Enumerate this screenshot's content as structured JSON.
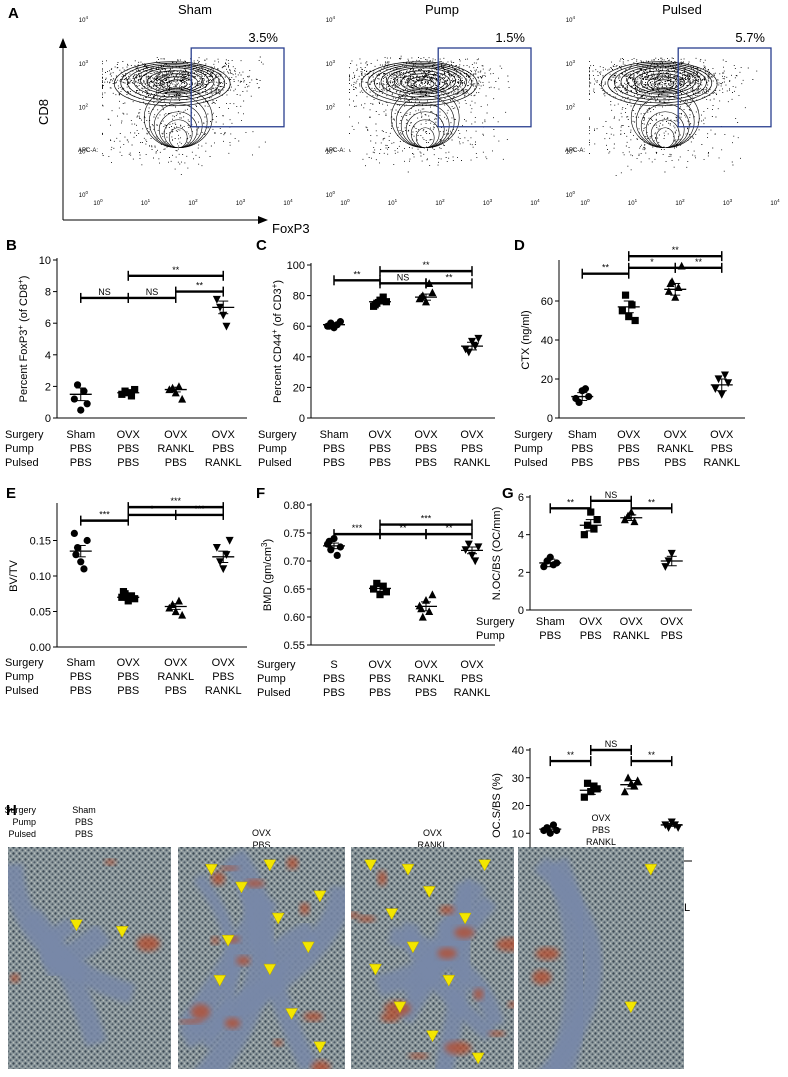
{
  "panel_letters": [
    "A",
    "B",
    "C",
    "D",
    "E",
    "F",
    "G",
    "H"
  ],
  "flow": {
    "y_label": "CD8",
    "x_label": "FoxP3",
    "apc_label": "APC-A:",
    "ticks": [
      "10 0",
      "10 1",
      "10 2",
      "10 3",
      "10 4"
    ],
    "plots": [
      {
        "title": "Sham",
        "percent": "3.5%",
        "gate_value": "3.45"
      },
      {
        "title": "Pump",
        "percent": "1.5%",
        "gate_value": "1.53"
      },
      {
        "title": "Pulsed",
        "percent": "5.7%",
        "gate_value": "5.71"
      }
    ]
  },
  "group_rows": {
    "labels3": [
      "Surgery",
      "Pump",
      "Pulsed"
    ],
    "labels2": [
      "Surgery",
      "Pump"
    ]
  },
  "chart_data": [
    {
      "id": "B",
      "type": "scatter",
      "ylabel": "Percent FoxP3+ (of CD8+)",
      "ylim": [
        0,
        10
      ],
      "yticks": [
        0,
        2,
        4,
        6,
        8,
        10
      ],
      "groups": [
        [
          "Sham",
          "PBS",
          "PBS"
        ],
        [
          "OVX",
          "PBS",
          "PBS"
        ],
        [
          "OVX",
          "RANKL",
          "PBS"
        ],
        [
          "OVX",
          "PBS",
          "RANKL"
        ]
      ],
      "markers": [
        "circle",
        "square",
        "triangle",
        "triangle-down"
      ],
      "points": [
        [
          1.2,
          2.1,
          0.5,
          1.7,
          0.9
        ],
        [
          1.5,
          1.7,
          1.6,
          1.4,
          1.8
        ],
        [
          1.8,
          1.9,
          1.6,
          2.0,
          1.2
        ],
        [
          7.5,
          7.0,
          6.5,
          5.8
        ]
      ],
      "means": [
        1.5,
        1.6,
        1.8,
        7.0
      ],
      "sems": [
        0.4,
        0.1,
        0.15,
        0.4
      ],
      "sig": [
        {
          "from": 0,
          "to": 1,
          "level": 7.6,
          "label": "NS"
        },
        {
          "from": 1,
          "to": 2,
          "level": 7.6,
          "label": "NS"
        },
        {
          "from": 1,
          "to": 3,
          "level": 9.0,
          "label": "**"
        },
        {
          "from": 2,
          "to": 3,
          "level": 8.0,
          "label": "**"
        }
      ]
    },
    {
      "id": "C",
      "type": "scatter",
      "ylabel": "Percent CD44+ (of CD3+)",
      "ylim": [
        0,
        100
      ],
      "yticks": [
        0,
        20,
        40,
        60,
        80,
        100
      ],
      "groups": [
        [
          "Sham",
          "PBS",
          "PBS"
        ],
        [
          "OVX",
          "PBS",
          "PBS"
        ],
        [
          "OVX",
          "PBS",
          "PBS"
        ],
        [
          "OVX",
          "PBS",
          "RANKL"
        ]
      ],
      "markers": [
        "circle",
        "square",
        "triangle",
        "triangle-down"
      ],
      "points": [
        [
          60,
          62,
          59,
          61,
          63,
          60
        ],
        [
          73,
          75,
          77,
          79,
          76,
          74
        ],
        [
          78,
          80,
          76,
          88,
          82,
          79
        ],
        [
          45,
          43,
          50,
          47,
          52
        ]
      ],
      "means": [
        61,
        76,
        79,
        47
      ],
      "sems": [
        1,
        1.5,
        2,
        2.5
      ],
      "sig": [
        {
          "from": 0,
          "to": 1,
          "level": 90,
          "label": "**"
        },
        {
          "from": 1,
          "to": 2,
          "level": 88,
          "label": "NS"
        },
        {
          "from": 1,
          "to": 3,
          "level": 96,
          "label": "**"
        },
        {
          "from": 2,
          "to": 3,
          "level": 88,
          "label": "**"
        }
      ]
    },
    {
      "id": "D",
      "type": "scatter",
      "ylabel": "CTX (ng/ml)",
      "ylim": [
        0,
        80
      ],
      "yticks": [
        0,
        20,
        40,
        60
      ],
      "groups": [
        [
          "Sham",
          "PBS",
          "PBS"
        ],
        [
          "OVX",
          "PBS",
          "PBS"
        ],
        [
          "OVX",
          "RANKL",
          "PBS"
        ],
        [
          "OVX",
          "PBS",
          "RANKL"
        ]
      ],
      "markers": [
        "circle",
        "square",
        "triangle",
        "triangle-down"
      ],
      "points": [
        [
          10,
          8,
          14,
          15,
          11
        ],
        [
          55,
          63,
          52,
          58,
          50
        ],
        [
          65,
          70,
          62,
          67,
          78,
          69
        ],
        [
          15,
          20,
          12,
          22,
          18
        ]
      ],
      "means": [
        11,
        57,
        66,
        17
      ],
      "sems": [
        2,
        3,
        3,
        3
      ],
      "sig": [
        {
          "from": 0,
          "to": 1,
          "level": 74,
          "label": "**"
        },
        {
          "from": 1,
          "to": 2,
          "level": 77,
          "label": "*"
        },
        {
          "from": 1,
          "to": 3,
          "level": 83,
          "label": "**"
        },
        {
          "from": 2,
          "to": 3,
          "level": 77,
          "label": "**"
        }
      ]
    },
    {
      "id": "E",
      "type": "scatter",
      "ylabel": "BV/TV",
      "ylim": [
        0.0,
        0.2
      ],
      "yticks": [
        0.0,
        0.05,
        0.1,
        0.15
      ],
      "ytick_labels": [
        "0.00",
        "0.05",
        "0.10",
        "0.15"
      ],
      "groups": [
        [
          "Sham",
          "PBS",
          "PBS"
        ],
        [
          "OVX",
          "PBS",
          "PBS"
        ],
        [
          "OVX",
          "RANKL",
          "PBS"
        ],
        [
          "OVX",
          "PBS",
          "RANKL"
        ]
      ],
      "markers": [
        "circle",
        "square",
        "triangle",
        "triangle-down"
      ],
      "points": [
        [
          0.16,
          0.14,
          0.12,
          0.11,
          0.15,
          0.13
        ],
        [
          0.07,
          0.075,
          0.065,
          0.072,
          0.068,
          0.078
        ],
        [
          0.055,
          0.06,
          0.05,
          0.065,
          0.045
        ],
        [
          0.14,
          0.12,
          0.11,
          0.13,
          0.15
        ]
      ],
      "means": [
        0.135,
        0.07,
        0.057,
        0.127
      ],
      "sems": [
        0.008,
        0.004,
        0.004,
        0.008
      ],
      "sig": [
        {
          "from": 0,
          "to": 1,
          "level": 0.178,
          "label": "***"
        },
        {
          "from": 1,
          "to": 2,
          "level": 0.186,
          "label": "*"
        },
        {
          "from": 1,
          "to": 3,
          "level": 0.197,
          "label": "***"
        },
        {
          "from": 2,
          "to": 3,
          "level": 0.186,
          "label": "***"
        }
      ]
    },
    {
      "id": "F",
      "type": "scatter",
      "ylabel": "BMD (gm/cm3)",
      "ylim": [
        0.55,
        0.8
      ],
      "yticks": [
        0.55,
        0.6,
        0.65,
        0.7,
        0.75,
        0.8
      ],
      "ytick_labels": [
        "0.55",
        "0.60",
        "0.65",
        "0.70",
        "0.75",
        "0.80"
      ],
      "groups": [
        [
          "S",
          "PBS",
          "PBS"
        ],
        [
          "OVX",
          "PBS",
          "PBS"
        ],
        [
          "OVX",
          "RANKL",
          "PBS"
        ],
        [
          "OVX",
          "PBS",
          "RANKL"
        ]
      ],
      "markers": [
        "circle",
        "square",
        "triangle",
        "triangle-down"
      ],
      "points": [
        [
          0.73,
          0.72,
          0.74,
          0.71,
          0.725,
          0.735
        ],
        [
          0.65,
          0.66,
          0.64,
          0.655,
          0.645
        ],
        [
          0.62,
          0.6,
          0.63,
          0.61,
          0.64,
          0.615
        ],
        [
          0.72,
          0.73,
          0.71,
          0.7,
          0.725
        ]
      ],
      "means": [
        0.727,
        0.651,
        0.619,
        0.719
      ],
      "sems": [
        0.005,
        0.005,
        0.008,
        0.006
      ],
      "sig": [
        {
          "from": 0,
          "to": 1,
          "level": 0.748,
          "label": "***"
        },
        {
          "from": 1,
          "to": 2,
          "level": 0.748,
          "label": "**"
        },
        {
          "from": 1,
          "to": 3,
          "level": 0.765,
          "label": "***"
        },
        {
          "from": 2,
          "to": 3,
          "level": 0.748,
          "label": "**"
        }
      ]
    },
    {
      "id": "G1",
      "type": "scatter",
      "ylabel": "N.OC/BS (OC/mm)",
      "ylim": [
        0,
        6
      ],
      "yticks": [
        0,
        2,
        4,
        6
      ],
      "groups": [
        [
          "Sham",
          "PBS"
        ],
        [
          "OVX",
          "PBS"
        ],
        [
          "OVX",
          "RANKL"
        ],
        [
          "OVX",
          "PBS"
        ]
      ],
      "markers": [
        "circle",
        "square",
        "triangle",
        "triangle-down"
      ],
      "points": [
        [
          2.3,
          2.6,
          2.8,
          2.4,
          2.5
        ],
        [
          4.0,
          4.5,
          5.2,
          4.3,
          4.8
        ],
        [
          4.8,
          5.0,
          5.2,
          4.7
        ],
        [
          2.3,
          2.6,
          3.0
        ]
      ],
      "means": [
        2.5,
        4.5,
        4.9,
        2.6
      ],
      "sems": [
        0.2,
        0.3,
        0.15,
        0.25
      ],
      "sig": [
        {
          "from": 0,
          "to": 1,
          "level": 5.4,
          "label": "**"
        },
        {
          "from": 1,
          "to": 2,
          "level": 5.8,
          "label": "NS"
        },
        {
          "from": 2,
          "to": 3,
          "level": 5.4,
          "label": "**"
        }
      ]
    },
    {
      "id": "G2",
      "type": "scatter",
      "ylabel": "OC.S/BS (%)",
      "ylim": [
        0,
        40
      ],
      "yticks": [
        0,
        10,
        20,
        30,
        40
      ],
      "groups": [
        [
          "S",
          "PBS",
          "PBS"
        ],
        [
          "OVX",
          "PBS",
          "PBS"
        ],
        [
          "OVX",
          "RANKL",
          "PBS"
        ],
        [
          "OVX",
          "PBS",
          "RANKL"
        ]
      ],
      "markers": [
        "circle",
        "square",
        "triangle",
        "triangle-down"
      ],
      "points": [
        [
          11,
          12,
          10,
          13,
          11
        ],
        [
          23,
          28,
          25,
          27,
          26
        ],
        [
          25,
          30,
          28,
          27,
          29
        ],
        [
          13,
          12,
          14,
          13,
          12
        ]
      ],
      "means": [
        11.5,
        25.5,
        27.5,
        13
      ],
      "sems": [
        0.8,
        1.5,
        1.5,
        0.5
      ],
      "sig": [
        {
          "from": 0,
          "to": 1,
          "level": 36,
          "label": "**"
        },
        {
          "from": 1,
          "to": 2,
          "level": 40,
          "label": "NS"
        },
        {
          "from": 2,
          "to": 3,
          "level": 36,
          "label": "**"
        }
      ]
    }
  ],
  "histology": {
    "row_labels": [
      "Surgery",
      "Pump",
      "Pulsed"
    ],
    "images": [
      {
        "labels": [
          "Sham",
          "PBS",
          "PBS"
        ],
        "arrows": [
          [
            0.42,
            0.35
          ],
          [
            0.7,
            0.38
          ]
        ]
      },
      {
        "labels": [
          "OVX",
          "PBS",
          "PBS"
        ],
        "arrows": [
          [
            0.2,
            0.1
          ],
          [
            0.55,
            0.08
          ],
          [
            0.38,
            0.18
          ],
          [
            0.85,
            0.22
          ],
          [
            0.6,
            0.32
          ],
          [
            0.3,
            0.42
          ],
          [
            0.78,
            0.45
          ],
          [
            0.55,
            0.55
          ],
          [
            0.25,
            0.6
          ],
          [
            0.68,
            0.75
          ],
          [
            0.85,
            0.9
          ]
        ]
      },
      {
        "labels": [
          "OVX",
          "RANKL",
          "PBS"
        ],
        "arrows": [
          [
            0.12,
            0.08
          ],
          [
            0.35,
            0.1
          ],
          [
            0.82,
            0.08
          ],
          [
            0.48,
            0.2
          ],
          [
            0.25,
            0.3
          ],
          [
            0.7,
            0.32
          ],
          [
            0.38,
            0.45
          ],
          [
            0.15,
            0.55
          ],
          [
            0.6,
            0.6
          ],
          [
            0.3,
            0.72
          ],
          [
            0.5,
            0.85
          ],
          [
            0.78,
            0.95
          ]
        ]
      },
      {
        "labels": [
          "OVX",
          "PBS",
          "RANKL"
        ],
        "arrows": [
          [
            0.8,
            0.1
          ],
          [
            0.68,
            0.72
          ]
        ]
      }
    ]
  },
  "colors": {
    "gate": "#2a3f8f",
    "arrow": "#f3e600",
    "tissue_blue": "#7888a8",
    "tissue_red": "#b84c2c",
    "ink": "#000000"
  }
}
